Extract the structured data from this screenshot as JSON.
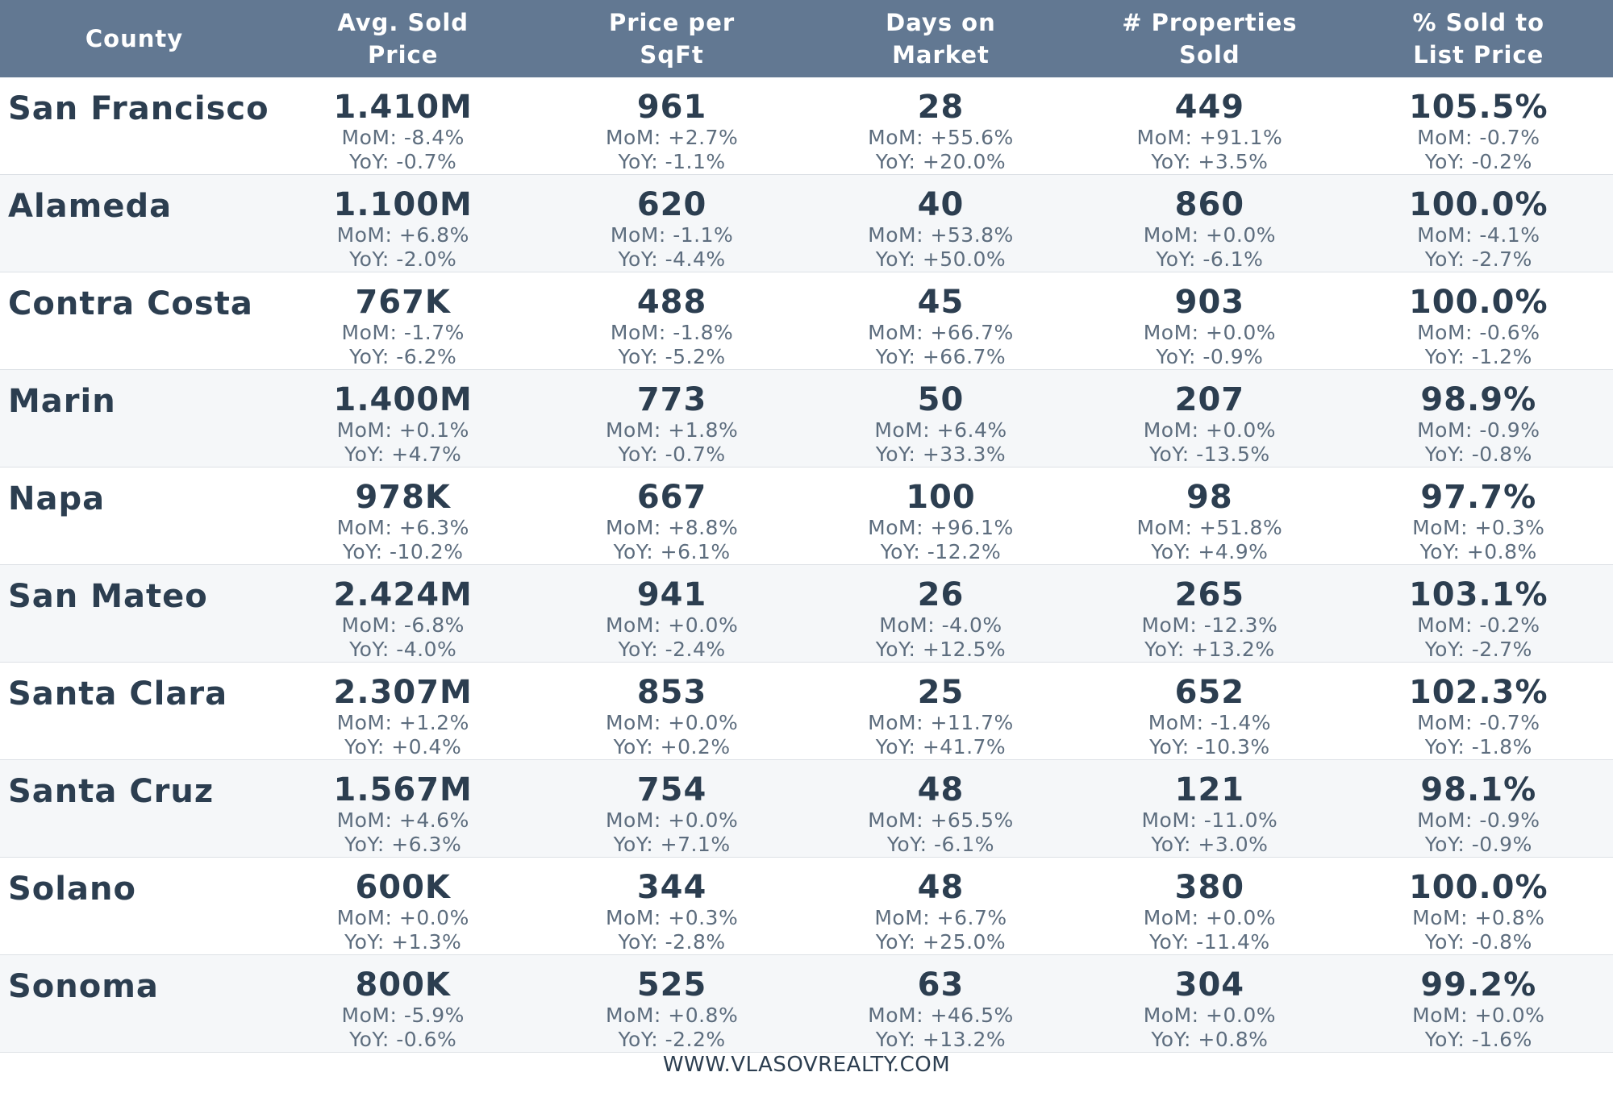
{
  "columns": [
    {
      "line1": "County",
      "line2": ""
    },
    {
      "line1": "Avg. Sold",
      "line2": "Price"
    },
    {
      "line1": "Price per",
      "line2": "SqFt"
    },
    {
      "line1": "Days on",
      "line2": "Market"
    },
    {
      "line1": "# Properties",
      "line2": "Sold"
    },
    {
      "line1": "% Sold to",
      "line2": "List Price"
    }
  ],
  "rows": [
    {
      "county": "San Francisco",
      "cells": [
        {
          "value": "1.410M",
          "mom": "MoM: -8.4%",
          "yoy": "YoY: -0.7%"
        },
        {
          "value": "961",
          "mom": "MoM: +2.7%",
          "yoy": "YoY: -1.1%"
        },
        {
          "value": "28",
          "mom": "MoM: +55.6%",
          "yoy": "YoY: +20.0%"
        },
        {
          "value": "449",
          "mom": "MoM: +91.1%",
          "yoy": "YoY: +3.5%"
        },
        {
          "value": "105.5%",
          "mom": "MoM: -0.7%",
          "yoy": "YoY: -0.2%"
        }
      ]
    },
    {
      "county": "Alameda",
      "cells": [
        {
          "value": "1.100M",
          "mom": "MoM: +6.8%",
          "yoy": "YoY: -2.0%"
        },
        {
          "value": "620",
          "mom": "MoM: -1.1%",
          "yoy": "YoY: -4.4%"
        },
        {
          "value": "40",
          "mom": "MoM: +53.8%",
          "yoy": "YoY: +50.0%"
        },
        {
          "value": "860",
          "mom": "MoM: +0.0%",
          "yoy": "YoY: -6.1%"
        },
        {
          "value": "100.0%",
          "mom": "MoM: -4.1%",
          "yoy": "YoY: -2.7%"
        }
      ]
    },
    {
      "county": "Contra Costa",
      "cells": [
        {
          "value": "767K",
          "mom": "MoM: -1.7%",
          "yoy": "YoY: -6.2%"
        },
        {
          "value": "488",
          "mom": "MoM: -1.8%",
          "yoy": "YoY: -5.2%"
        },
        {
          "value": "45",
          "mom": "MoM: +66.7%",
          "yoy": "YoY: +66.7%"
        },
        {
          "value": "903",
          "mom": "MoM: +0.0%",
          "yoy": "YoY: -0.9%"
        },
        {
          "value": "100.0%",
          "mom": "MoM: -0.6%",
          "yoy": "YoY: -1.2%"
        }
      ]
    },
    {
      "county": "Marin",
      "cells": [
        {
          "value": "1.400M",
          "mom": "MoM: +0.1%",
          "yoy": "YoY: +4.7%"
        },
        {
          "value": "773",
          "mom": "MoM: +1.8%",
          "yoy": "YoY: -0.7%"
        },
        {
          "value": "50",
          "mom": "MoM: +6.4%",
          "yoy": "YoY: +33.3%"
        },
        {
          "value": "207",
          "mom": "MoM: +0.0%",
          "yoy": "YoY: -13.5%"
        },
        {
          "value": "98.9%",
          "mom": "MoM: -0.9%",
          "yoy": "YoY: -0.8%"
        }
      ]
    },
    {
      "county": "Napa",
      "cells": [
        {
          "value": "978K",
          "mom": "MoM: +6.3%",
          "yoy": "YoY: -10.2%"
        },
        {
          "value": "667",
          "mom": "MoM: +8.8%",
          "yoy": "YoY: +6.1%"
        },
        {
          "value": "100",
          "mom": "MoM: +96.1%",
          "yoy": "YoY: -12.2%"
        },
        {
          "value": "98",
          "mom": "MoM: +51.8%",
          "yoy": "YoY: +4.9%"
        },
        {
          "value": "97.7%",
          "mom": "MoM: +0.3%",
          "yoy": "YoY: +0.8%"
        }
      ]
    },
    {
      "county": "San Mateo",
      "cells": [
        {
          "value": "2.424M",
          "mom": "MoM: -6.8%",
          "yoy": "YoY: -4.0%"
        },
        {
          "value": "941",
          "mom": "MoM: +0.0%",
          "yoy": "YoY: -2.4%"
        },
        {
          "value": "26",
          "mom": "MoM: -4.0%",
          "yoy": "YoY: +12.5%"
        },
        {
          "value": "265",
          "mom": "MoM: -12.3%",
          "yoy": "YoY: +13.2%"
        },
        {
          "value": "103.1%",
          "mom": "MoM: -0.2%",
          "yoy": "YoY: -2.7%"
        }
      ]
    },
    {
      "county": "Santa Clara",
      "cells": [
        {
          "value": "2.307M",
          "mom": "MoM: +1.2%",
          "yoy": "YoY: +0.4%"
        },
        {
          "value": "853",
          "mom": "MoM: +0.0%",
          "yoy": "YoY: +0.2%"
        },
        {
          "value": "25",
          "mom": "MoM: +11.7%",
          "yoy": "YoY: +41.7%"
        },
        {
          "value": "652",
          "mom": "MoM: -1.4%",
          "yoy": "YoY: -10.3%"
        },
        {
          "value": "102.3%",
          "mom": "MoM: -0.7%",
          "yoy": "YoY: -1.8%"
        }
      ]
    },
    {
      "county": "Santa Cruz",
      "cells": [
        {
          "value": "1.567M",
          "mom": "MoM: +4.6%",
          "yoy": "YoY: +6.3%"
        },
        {
          "value": "754",
          "mom": "MoM: +0.0%",
          "yoy": "YoY: +7.1%"
        },
        {
          "value": "48",
          "mom": "MoM: +65.5%",
          "yoy": "YoY: -6.1%"
        },
        {
          "value": "121",
          "mom": "MoM: -11.0%",
          "yoy": "YoY: +3.0%"
        },
        {
          "value": "98.1%",
          "mom": "MoM: -0.9%",
          "yoy": "YoY: -0.9%"
        }
      ]
    },
    {
      "county": "Solano",
      "cells": [
        {
          "value": "600K",
          "mom": "MoM: +0.0%",
          "yoy": "YoY: +1.3%"
        },
        {
          "value": "344",
          "mom": "MoM: +0.3%",
          "yoy": "YoY: -2.8%"
        },
        {
          "value": "48",
          "mom": "MoM: +6.7%",
          "yoy": "YoY: +25.0%"
        },
        {
          "value": "380",
          "mom": "MoM: +0.0%",
          "yoy": "YoY: -11.4%"
        },
        {
          "value": "100.0%",
          "mom": "MoM: +0.8%",
          "yoy": "YoY: -0.8%"
        }
      ]
    },
    {
      "county": "Sonoma",
      "cells": [
        {
          "value": "800K",
          "mom": "MoM: -5.9%",
          "yoy": "YoY: -0.6%"
        },
        {
          "value": "525",
          "mom": "MoM: +0.8%",
          "yoy": "YoY: -2.2%"
        },
        {
          "value": "63",
          "mom": "MoM: +46.5%",
          "yoy": "YoY: +13.2%"
        },
        {
          "value": "304",
          "mom": "MoM: +0.0%",
          "yoy": "YoY: +0.8%"
        },
        {
          "value": "99.2%",
          "mom": "MoM: +0.0%",
          "yoy": "YoY: -1.6%"
        }
      ]
    }
  ],
  "footer": "WWW.VLASOVREALTY.COM",
  "colors": {
    "header_bg": "#627892",
    "header_text": "#ffffff",
    "primary_text": "#2c3e50",
    "secondary_text": "#5d6d7e",
    "alt_row_bg": "#f5f7f9"
  }
}
